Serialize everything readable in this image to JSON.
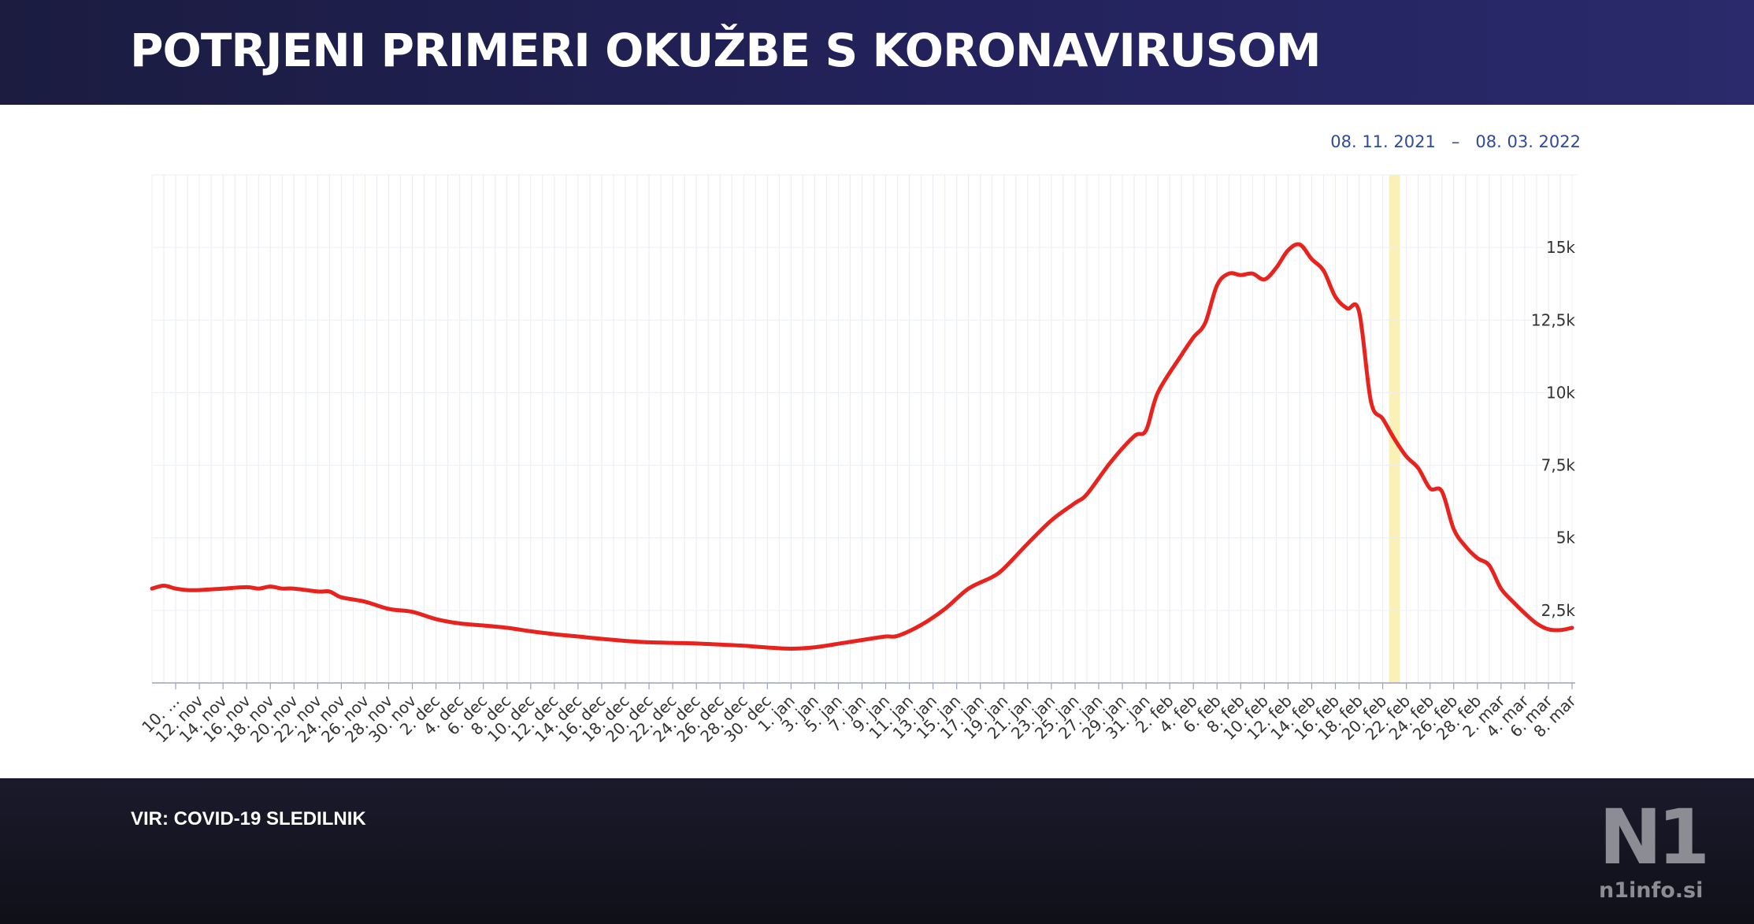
{
  "header": {
    "title": "POTRJENI PRIMERI OKUŽBE S KORONAVIRUSOM"
  },
  "date_range": {
    "from": "08. 11. 2021",
    "separator": "–",
    "to": "08. 03. 2022"
  },
  "footer": {
    "source": "VIR: COVID-19 SLEDILNIK"
  },
  "logo": {
    "mark": "N1",
    "site": "n1info.si"
  },
  "colors": {
    "header_bg": "#23225c",
    "line": "#e8231e",
    "highlight": "#f9f1b8",
    "date_text": "#2f4a9a",
    "footer_bg": "#14141f"
  },
  "chart_data": {
    "type": "line",
    "x_start": "2021-11-08",
    "x_end": "2022-03-08",
    "ylim": [
      0,
      17500
    ],
    "y_ticks": [
      "2,5k",
      "5k",
      "7,5k",
      "10k",
      "12,5k",
      "15k"
    ],
    "y_tick_values": [
      2500,
      5000,
      7500,
      10000,
      12500,
      15000
    ],
    "x_tick_labels": [
      "10. ...",
      "12. nov",
      "14. nov",
      "16. nov",
      "18. nov",
      "20. nov",
      "22. nov",
      "24. nov",
      "26. nov",
      "28. nov",
      "30. nov",
      "2. dec",
      "4. dec",
      "6. dec",
      "8. dec",
      "10. dec",
      "12. dec",
      "14. dec",
      "16. dec",
      "18. dec",
      "20. dec",
      "22. dec",
      "24. dec",
      "26. dec",
      "28. dec",
      "30. dec",
      "1. jan",
      "3. jan",
      "5. jan",
      "7. jan",
      "9. jan",
      "11. jan",
      "13. jan",
      "15. jan",
      "17. jan",
      "19. jan",
      "21. jan",
      "23. jan",
      "25. jan",
      "27. jan",
      "29. jan",
      "31. jan",
      "2. feb",
      "4. feb",
      "6. feb",
      "8. feb",
      "10. feb",
      "12. feb",
      "14. feb",
      "16. feb",
      "18. feb",
      "20. feb",
      "22. feb",
      "24. feb",
      "26. feb",
      "28. feb",
      "2. mar",
      "4. mar",
      "6. mar",
      "8. mar"
    ],
    "highlight_date": "2022-02-21",
    "grid": true,
    "legend": "none",
    "series": [
      {
        "points": [
          [
            "2021-11-08",
            3250
          ],
          [
            "2021-11-09",
            3350
          ],
          [
            "2021-11-10",
            3250
          ],
          [
            "2021-11-11",
            3200
          ],
          [
            "2021-11-12",
            3200
          ],
          [
            "2021-11-14",
            3250
          ],
          [
            "2021-11-16",
            3300
          ],
          [
            "2021-11-17",
            3250
          ],
          [
            "2021-11-18",
            3320
          ],
          [
            "2021-11-19",
            3250
          ],
          [
            "2021-11-20",
            3250
          ],
          [
            "2021-11-22",
            3150
          ],
          [
            "2021-11-23",
            3150
          ],
          [
            "2021-11-24",
            2950
          ],
          [
            "2021-11-26",
            2800
          ],
          [
            "2021-11-28",
            2550
          ],
          [
            "2021-11-30",
            2450
          ],
          [
            "2021-12-02",
            2200
          ],
          [
            "2021-12-04",
            2050
          ],
          [
            "2021-12-06",
            1980
          ],
          [
            "2021-12-08",
            1900
          ],
          [
            "2021-12-10",
            1780
          ],
          [
            "2021-12-12",
            1680
          ],
          [
            "2021-12-14",
            1600
          ],
          [
            "2021-12-16",
            1520
          ],
          [
            "2021-12-18",
            1450
          ],
          [
            "2021-12-20",
            1400
          ],
          [
            "2021-12-22",
            1380
          ],
          [
            "2021-12-24",
            1360
          ],
          [
            "2021-12-26",
            1320
          ],
          [
            "2021-12-28",
            1280
          ],
          [
            "2021-12-30",
            1220
          ],
          [
            "2022-01-01",
            1180
          ],
          [
            "2022-01-03",
            1230
          ],
          [
            "2022-01-05",
            1350
          ],
          [
            "2022-01-07",
            1480
          ],
          [
            "2022-01-09",
            1600
          ],
          [
            "2022-01-10",
            1620
          ],
          [
            "2022-01-12",
            2000
          ],
          [
            "2022-01-14",
            2550
          ],
          [
            "2022-01-16",
            3250
          ],
          [
            "2022-01-18",
            3650
          ],
          [
            "2022-01-19",
            3950
          ],
          [
            "2022-01-21",
            4800
          ],
          [
            "2022-01-23",
            5600
          ],
          [
            "2022-01-25",
            6200
          ],
          [
            "2022-01-26",
            6500
          ],
          [
            "2022-01-28",
            7600
          ],
          [
            "2022-01-30",
            8500
          ],
          [
            "2022-01-31",
            8700
          ],
          [
            "2022-02-01",
            10000
          ],
          [
            "2022-02-03",
            11300
          ],
          [
            "2022-02-04",
            11900
          ],
          [
            "2022-02-05",
            12400
          ],
          [
            "2022-02-06",
            13700
          ],
          [
            "2022-02-07",
            14100
          ],
          [
            "2022-02-08",
            14050
          ],
          [
            "2022-02-09",
            14100
          ],
          [
            "2022-02-10",
            13900
          ],
          [
            "2022-02-11",
            14300
          ],
          [
            "2022-02-12",
            14900
          ],
          [
            "2022-02-13",
            15100
          ],
          [
            "2022-02-14",
            14600
          ],
          [
            "2022-02-15",
            14200
          ],
          [
            "2022-02-16",
            13300
          ],
          [
            "2022-02-17",
            12900
          ],
          [
            "2022-02-18",
            12800
          ],
          [
            "2022-02-19",
            9700
          ],
          [
            "2022-02-20",
            9100
          ],
          [
            "2022-02-21",
            8400
          ],
          [
            "2022-02-22",
            7800
          ],
          [
            "2022-02-23",
            7400
          ],
          [
            "2022-02-24",
            6700
          ],
          [
            "2022-02-25",
            6600
          ],
          [
            "2022-02-26",
            5300
          ],
          [
            "2022-02-27",
            4700
          ],
          [
            "2022-02-28",
            4300
          ],
          [
            "2022-03-01",
            4050
          ],
          [
            "2022-03-02",
            3250
          ],
          [
            "2022-03-03",
            2800
          ],
          [
            "2022-03-04",
            2400
          ],
          [
            "2022-03-05",
            2050
          ],
          [
            "2022-03-06",
            1850
          ],
          [
            "2022-03-07",
            1820
          ],
          [
            "2022-03-08",
            1900
          ]
        ]
      }
    ]
  }
}
